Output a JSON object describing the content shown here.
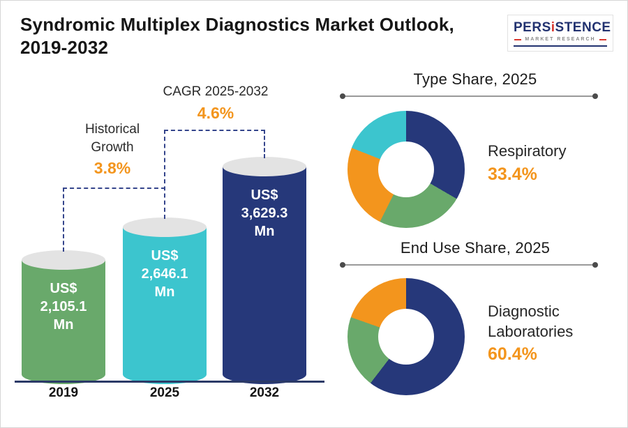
{
  "header": {
    "title": "Syndromic Multiplex Diagnostics Market Outlook,\n2019-2032",
    "logo": {
      "brand_pre": "PERS",
      "brand_i": "i",
      "brand_post": "STENCE",
      "tagline": "MARKET RESEARCH"
    }
  },
  "colors": {
    "navy": "#26387a",
    "teal": "#3cc5ce",
    "green": "#69a96b",
    "orange": "#f3951d",
    "cap_gray": "#e3e3e3",
    "accent_value": "#f3951d"
  },
  "chart_data": [
    {
      "type": "bar",
      "title": "Syndromic Multiplex Diagnostics Market Outlook, 2019-2032",
      "categories": [
        "2019",
        "2025",
        "2032"
      ],
      "values": [
        2105.1,
        2646.1,
        3629.3
      ],
      "unit": "US$ Mn",
      "value_labels": [
        "US$\n2,105.1\nMn",
        "US$\n2,646.1\nMn",
        "US$\n3,629.3\nMn"
      ],
      "bar_colors": [
        "#69a96b",
        "#3cc5ce",
        "#26387a"
      ],
      "ylim": [
        0,
        3700
      ],
      "annotations": [
        {
          "label": "Historical\nGrowth",
          "value": "3.8%",
          "from": "2019",
          "to": "2025"
        },
        {
          "label": "CAGR 2025-2032",
          "value": "4.6%",
          "from": "2025",
          "to": "2032"
        }
      ]
    },
    {
      "type": "pie",
      "donut": true,
      "title": "Type Share, 2025",
      "slices": [
        {
          "name": "Respiratory",
          "value": 33.4,
          "color": "#26387a"
        },
        {
          "name": "unlabeled-green",
          "value": 24.0,
          "color": "#69a96b"
        },
        {
          "name": "unlabeled-orange",
          "value": 23.6,
          "color": "#f3951d"
        },
        {
          "name": "unlabeled-teal",
          "value": 19.0,
          "color": "#3cc5ce"
        }
      ],
      "callout": {
        "label": "Respiratory",
        "value": "33.4%"
      }
    },
    {
      "type": "pie",
      "donut": true,
      "title": "End Use Share, 2025",
      "slices": [
        {
          "name": "Diagnostic Laboratories",
          "value": 60.4,
          "color": "#26387a"
        },
        {
          "name": "unlabeled-green",
          "value": 20.0,
          "color": "#69a96b"
        },
        {
          "name": "unlabeled-orange",
          "value": 19.6,
          "color": "#f3951d"
        }
      ],
      "callout": {
        "label": "Diagnostic\nLaboratories",
        "value": "60.4%"
      }
    }
  ]
}
